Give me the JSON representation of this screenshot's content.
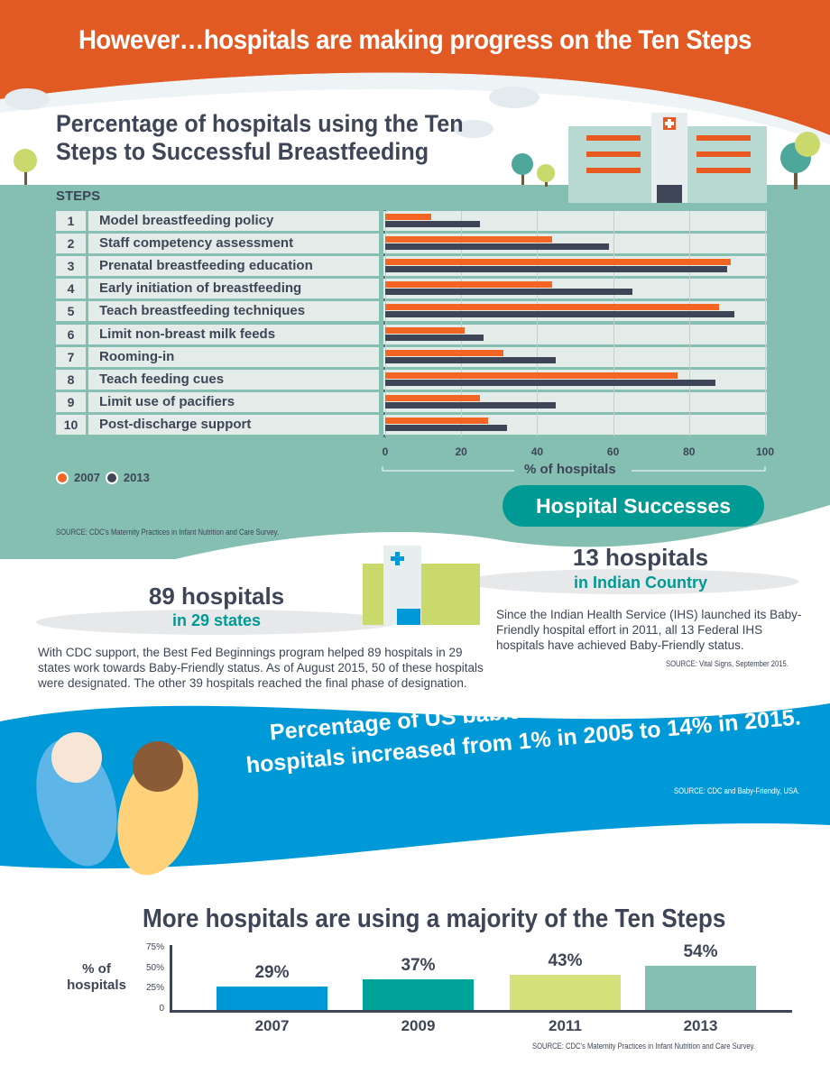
{
  "header": {
    "title": "However…hospitals are making progress on the Ten Steps"
  },
  "colors": {
    "orange": "#e85a20",
    "navy": "#3d4556",
    "teal_bg": "#84bfb2",
    "teal": "#009a94",
    "blue": "#0099d8"
  },
  "chart_data": [
    {
      "type": "bar",
      "orientation": "horizontal",
      "title": "Percentage of hospitals using the Ten Steps to Successful Breastfeeding",
      "steps_header": "STEPS",
      "step_numbers": [
        "1",
        "2",
        "3",
        "4",
        "5",
        "6",
        "7",
        "8",
        "9",
        "10"
      ],
      "categories": [
        "Model breastfeeding policy",
        "Staff competency assessment",
        "Prenatal breastfeeding education",
        "Early initiation of breastfeeding",
        "Teach breastfeeding techniques",
        "Limit non-breast milk feeds",
        "Rooming-in",
        "Teach feeding cues",
        "Limit use of pacifiers",
        "Post-discharge support"
      ],
      "series": [
        {
          "name": "2007",
          "color": "#f26522",
          "values": [
            12,
            44,
            91,
            44,
            88,
            21,
            31,
            77,
            25,
            27
          ]
        },
        {
          "name": "2013",
          "color": "#3d4556",
          "values": [
            25,
            59,
            90,
            65,
            92,
            26,
            45,
            87,
            45,
            32
          ]
        }
      ],
      "xlabel": "% of hospitals",
      "xlim": [
        0,
        100
      ],
      "xticks": [
        "0",
        "20",
        "40",
        "60",
        "80",
        "100"
      ],
      "grid": true,
      "legend": "bottom-left",
      "source": "SOURCE: CDC's Maternity Practices in Infant Nutrition and Care Survey."
    },
    {
      "type": "bar",
      "title": "More hospitals are using a majority of the Ten Steps",
      "categories": [
        "2007",
        "2009",
        "2011",
        "2013"
      ],
      "values": [
        29,
        37,
        43,
        54
      ],
      "data_labels": [
        "29%",
        "37%",
        "43%",
        "54%"
      ],
      "colors": [
        "#0099d8",
        "#00a39a",
        "#d5e17a",
        "#84bfb2"
      ],
      "ylabel": "% of hospitals",
      "ylim": [
        0,
        75
      ],
      "yticks": [
        "0",
        "25%",
        "50%",
        "75%"
      ],
      "source": "SOURCE: CDC's Maternity Practices in Infant Nutrition and Care Survey."
    }
  ],
  "successes": {
    "pill": "Hospital Successes",
    "left": {
      "count": "89 hospitals",
      "sub": "in 29 states",
      "text": "With CDC support, the Best Fed Beginnings program helped 89 hospitals in 29 states work towards Baby-Friendly status. As of August 2015, 50 of these hospitals were designated. The other 39 hospitals reached the final phase of designation."
    },
    "right": {
      "count": "13 hospitals",
      "sub": "in Indian Country",
      "text": "Since the Indian Health Service (IHS) launched its Baby-Friendly hospital effort in 2011, all 13 Federal IHS hospitals have achieved Baby-Friendly status.",
      "source": "SOURCE: Vital Signs, September 2015."
    }
  },
  "babies": {
    "text": "Percentage of US babies born in Baby-Friendly hospitals increased from 1% in 2005 to 14% in 2015.",
    "source": "SOURCE: CDC and Baby-Friendly, USA."
  }
}
